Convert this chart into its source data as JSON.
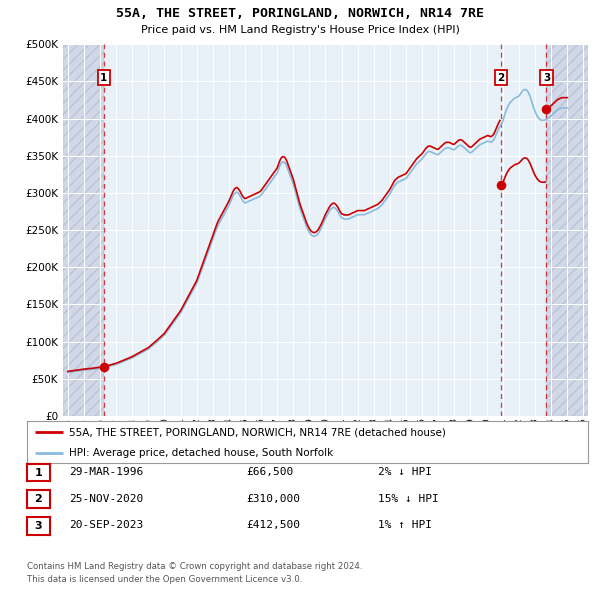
{
  "title": "55A, THE STREET, PORINGLAND, NORWICH, NR14 7RE",
  "subtitle": "Price paid vs. HM Land Registry's House Price Index (HPI)",
  "legend_line1": "55A, THE STREET, PORINGLAND, NORWICH, NR14 7RE (detached house)",
  "legend_line2": "HPI: Average price, detached house, South Norfolk",
  "table_rows": [
    {
      "num": "1",
      "date": "29-MAR-1996",
      "price": "£66,500",
      "pct": "2% ↓ HPI"
    },
    {
      "num": "2",
      "date": "25-NOV-2020",
      "price": "£310,000",
      "pct": "15% ↓ HPI"
    },
    {
      "num": "3",
      "date": "20-SEP-2023",
      "price": "£412,500",
      "pct": "1% ↑ HPI"
    }
  ],
  "footer1": "Contains HM Land Registry data © Crown copyright and database right 2024.",
  "footer2": "This data is licensed under the Open Government Licence v3.0.",
  "sale_color": "#cc0000",
  "hpi_color": "#88bbdd",
  "marker_color": "#cc0000",
  "dashed_color": "#cc0000",
  "background_plot": "#e8f0f8",
  "background_hatch": "#d0d8e8",
  "ylim": [
    0,
    500000
  ],
  "yticks": [
    0,
    50000,
    100000,
    150000,
    200000,
    250000,
    300000,
    350000,
    400000,
    450000,
    500000
  ],
  "xlim_start": 1993.7,
  "xlim_end": 2026.3,
  "xticks": [
    1994,
    1995,
    1996,
    1997,
    1998,
    1999,
    2000,
    2001,
    2002,
    2003,
    2004,
    2005,
    2006,
    2007,
    2008,
    2009,
    2010,
    2011,
    2012,
    2013,
    2014,
    2015,
    2016,
    2017,
    2018,
    2019,
    2020,
    2021,
    2022,
    2023,
    2024,
    2025,
    2026
  ],
  "sale_dates": [
    1996.24,
    2020.9,
    2023.72
  ],
  "sale_prices": [
    66500,
    310000,
    412500
  ],
  "hpi_index": [
    1994.0,
    71.2,
    1994.083,
    71.5,
    1994.167,
    71.8,
    1994.25,
    72.1,
    1994.333,
    72.4,
    1994.417,
    72.7,
    1994.5,
    73.0,
    1994.583,
    73.3,
    1994.667,
    73.6,
    1994.75,
    73.9,
    1994.833,
    74.2,
    1994.917,
    74.5,
    1995.0,
    74.8,
    1995.083,
    75.0,
    1995.167,
    75.2,
    1995.25,
    75.4,
    1995.333,
    75.6,
    1995.417,
    75.8,
    1995.5,
    76.0,
    1995.583,
    76.3,
    1995.667,
    76.6,
    1995.75,
    76.9,
    1995.833,
    77.2,
    1995.917,
    77.5,
    1996.0,
    77.8,
    1996.083,
    78.2,
    1996.167,
    78.6,
    1996.25,
    79.0,
    1996.333,
    79.5,
    1996.417,
    80.0,
    1996.5,
    80.5,
    1996.583,
    81.1,
    1996.667,
    81.7,
    1996.75,
    82.3,
    1996.833,
    82.9,
    1996.917,
    83.5,
    1997.0,
    84.2,
    1997.083,
    85.0,
    1997.167,
    85.8,
    1997.25,
    86.7,
    1997.333,
    87.6,
    1997.417,
    88.5,
    1997.5,
    89.4,
    1997.583,
    90.3,
    1997.667,
    91.2,
    1997.75,
    92.1,
    1997.833,
    93.0,
    1997.917,
    93.9,
    1998.0,
    94.8,
    1998.083,
    96.0,
    1998.167,
    97.2,
    1998.25,
    98.4,
    1998.333,
    99.6,
    1998.417,
    100.8,
    1998.5,
    102.0,
    1998.583,
    103.2,
    1998.667,
    104.4,
    1998.75,
    105.6,
    1998.833,
    106.8,
    1998.917,
    108.0,
    1999.0,
    109.2,
    1999.083,
    111.0,
    1999.167,
    112.8,
    1999.25,
    114.6,
    1999.333,
    116.4,
    1999.417,
    118.2,
    1999.5,
    120.0,
    1999.583,
    122.0,
    1999.667,
    124.0,
    1999.75,
    126.0,
    1999.833,
    128.0,
    1999.917,
    130.0,
    2000.0,
    132.0,
    2000.083,
    135.0,
    2000.167,
    138.0,
    2000.25,
    141.0,
    2000.333,
    144.0,
    2000.417,
    147.0,
    2000.5,
    150.0,
    2000.583,
    153.0,
    2000.667,
    156.0,
    2000.75,
    159.0,
    2000.833,
    162.0,
    2000.917,
    165.0,
    2001.0,
    168.0,
    2001.083,
    172.0,
    2001.167,
    176.0,
    2001.25,
    180.0,
    2001.333,
    184.0,
    2001.417,
    188.0,
    2001.5,
    192.0,
    2001.583,
    196.0,
    2001.667,
    200.0,
    2001.75,
    204.0,
    2001.833,
    208.0,
    2001.917,
    212.0,
    2002.0,
    216.0,
    2002.083,
    222.0,
    2002.167,
    228.0,
    2002.25,
    234.0,
    2002.333,
    240.0,
    2002.417,
    246.0,
    2002.5,
    252.0,
    2002.583,
    258.0,
    2002.667,
    264.0,
    2002.75,
    270.0,
    2002.833,
    276.0,
    2002.917,
    282.0,
    2003.0,
    288.0,
    2003.083,
    294.0,
    2003.167,
    300.0,
    2003.25,
    306.0,
    2003.333,
    311.0,
    2003.417,
    315.0,
    2003.5,
    319.0,
    2003.583,
    323.0,
    2003.667,
    327.0,
    2003.75,
    331.0,
    2003.833,
    335.0,
    2003.917,
    339.0,
    2004.0,
    343.0,
    2004.083,
    348.0,
    2004.167,
    353.0,
    2004.25,
    358.0,
    2004.333,
    362.0,
    2004.417,
    364.0,
    2004.5,
    365.0,
    2004.583,
    363.0,
    2004.667,
    360.0,
    2004.75,
    356.0,
    2004.833,
    352.0,
    2004.917,
    349.0,
    2005.0,
    347.0,
    2005.083,
    348.0,
    2005.167,
    349.0,
    2005.25,
    350.0,
    2005.333,
    351.0,
    2005.417,
    352.0,
    2005.5,
    353.0,
    2005.583,
    354.0,
    2005.667,
    355.0,
    2005.75,
    356.0,
    2005.833,
    357.0,
    2005.917,
    358.0,
    2006.0,
    360.0,
    2006.083,
    363.0,
    2006.167,
    366.0,
    2006.25,
    369.0,
    2006.333,
    372.0,
    2006.417,
    375.0,
    2006.5,
    378.0,
    2006.583,
    381.0,
    2006.667,
    384.0,
    2006.75,
    387.0,
    2006.833,
    390.0,
    2006.917,
    393.0,
    2007.0,
    396.0,
    2007.083,
    402.0,
    2007.167,
    408.0,
    2007.25,
    412.0,
    2007.333,
    414.0,
    2007.417,
    414.0,
    2007.5,
    412.0,
    2007.583,
    408.0,
    2007.667,
    402.0,
    2007.75,
    396.0,
    2007.833,
    390.0,
    2007.917,
    384.0,
    2008.0,
    378.0,
    2008.083,
    370.0,
    2008.167,
    362.0,
    2008.25,
    354.0,
    2008.333,
    346.0,
    2008.417,
    338.0,
    2008.5,
    332.0,
    2008.583,
    326.0,
    2008.667,
    320.0,
    2008.75,
    314.0,
    2008.833,
    308.0,
    2008.917,
    303.0,
    2009.0,
    299.0,
    2009.083,
    296.0,
    2009.167,
    294.0,
    2009.25,
    293.0,
    2009.333,
    293.0,
    2009.417,
    294.0,
    2009.5,
    296.0,
    2009.583,
    299.0,
    2009.667,
    303.0,
    2009.75,
    307.0,
    2009.833,
    312.0,
    2009.917,
    317.0,
    2010.0,
    322.0,
    2010.083,
    326.0,
    2010.167,
    330.0,
    2010.25,
    334.0,
    2010.333,
    337.0,
    2010.417,
    339.0,
    2010.5,
    340.0,
    2010.583,
    339.0,
    2010.667,
    337.0,
    2010.75,
    334.0,
    2010.833,
    330.0,
    2010.917,
    326.0,
    2011.0,
    323.0,
    2011.083,
    322.0,
    2011.167,
    321.0,
    2011.25,
    321.0,
    2011.333,
    321.0,
    2011.417,
    321.0,
    2011.5,
    322.0,
    2011.583,
    323.0,
    2011.667,
    324.0,
    2011.75,
    325.0,
    2011.833,
    326.0,
    2011.917,
    327.0,
    2012.0,
    328.0,
    2012.083,
    328.0,
    2012.167,
    328.0,
    2012.25,
    328.0,
    2012.333,
    328.0,
    2012.417,
    328.0,
    2012.5,
    329.0,
    2012.583,
    330.0,
    2012.667,
    331.0,
    2012.75,
    332.0,
    2012.833,
    333.0,
    2012.917,
    334.0,
    2013.0,
    335.0,
    2013.083,
    336.0,
    2013.167,
    337.0,
    2013.25,
    338.0,
    2013.333,
    340.0,
    2013.417,
    342.0,
    2013.5,
    344.0,
    2013.583,
    347.0,
    2013.667,
    350.0,
    2013.75,
    353.0,
    2013.833,
    356.0,
    2013.917,
    359.0,
    2014.0,
    362.0,
    2014.083,
    366.0,
    2014.167,
    370.0,
    2014.25,
    374.0,
    2014.333,
    377.0,
    2014.417,
    379.0,
    2014.5,
    381.0,
    2014.583,
    382.0,
    2014.667,
    383.0,
    2014.75,
    384.0,
    2014.833,
    385.0,
    2014.917,
    386.0,
    2015.0,
    387.0,
    2015.083,
    390.0,
    2015.167,
    393.0,
    2015.25,
    396.0,
    2015.333,
    399.0,
    2015.417,
    402.0,
    2015.5,
    405.0,
    2015.583,
    408.0,
    2015.667,
    411.0,
    2015.75,
    413.0,
    2015.833,
    415.0,
    2015.917,
    417.0,
    2016.0,
    419.0,
    2016.083,
    422.0,
    2016.167,
    425.0,
    2016.25,
    428.0,
    2016.333,
    430.0,
    2016.417,
    431.0,
    2016.5,
    431.0,
    2016.583,
    430.0,
    2016.667,
    429.0,
    2016.75,
    428.0,
    2016.833,
    427.0,
    2016.917,
    426.0,
    2017.0,
    426.0,
    2017.083,
    428.0,
    2017.167,
    430.0,
    2017.25,
    432.0,
    2017.333,
    434.0,
    2017.417,
    436.0,
    2017.5,
    437.0,
    2017.583,
    437.0,
    2017.667,
    437.0,
    2017.75,
    436.0,
    2017.833,
    435.0,
    2017.917,
    434.0,
    2018.0,
    434.0,
    2018.083,
    436.0,
    2018.167,
    438.0,
    2018.25,
    440.0,
    2018.333,
    441.0,
    2018.417,
    441.0,
    2018.5,
    440.0,
    2018.583,
    438.0,
    2018.667,
    436.0,
    2018.75,
    434.0,
    2018.833,
    432.0,
    2018.917,
    430.0,
    2019.0,
    429.0,
    2019.083,
    430.0,
    2019.167,
    432.0,
    2019.25,
    434.0,
    2019.333,
    436.0,
    2019.417,
    438.0,
    2019.5,
    440.0,
    2019.583,
    442.0,
    2019.667,
    443.0,
    2019.75,
    444.0,
    2019.833,
    445.0,
    2019.917,
    446.0,
    2020.0,
    447.0,
    2020.083,
    448.0,
    2020.167,
    447.0,
    2020.25,
    446.0,
    2020.333,
    447.0,
    2020.417,
    449.0,
    2020.5,
    453.0,
    2020.583,
    458.0,
    2020.667,
    463.0,
    2020.75,
    468.0,
    2020.833,
    472.0,
    2020.917,
    476.0,
    2021.0,
    480.0,
    2021.083,
    487.0,
    2021.167,
    494.0,
    2021.25,
    500.0,
    2021.333,
    505.0,
    2021.417,
    509.0,
    2021.5,
    512.0,
    2021.583,
    514.0,
    2021.667,
    516.0,
    2021.75,
    518.0,
    2021.833,
    519.0,
    2021.917,
    520.0,
    2022.0,
    521.0,
    2022.083,
    524.0,
    2022.167,
    527.0,
    2022.25,
    530.0,
    2022.333,
    532.0,
    2022.417,
    532.0,
    2022.5,
    531.0,
    2022.583,
    528.0,
    2022.667,
    523.0,
    2022.75,
    517.0,
    2022.833,
    510.0,
    2022.917,
    503.0,
    2023.0,
    497.0,
    2023.083,
    492.0,
    2023.167,
    488.0,
    2023.25,
    485.0,
    2023.333,
    483.0,
    2023.417,
    482.0,
    2023.5,
    482.0,
    2023.583,
    482.0,
    2023.667,
    483.0,
    2023.75,
    484.0,
    2023.833,
    485.0,
    2023.917,
    487.0,
    2024.0,
    489.0,
    2024.083,
    491.0,
    2024.167,
    493.0,
    2024.25,
    495.0,
    2024.333,
    497.0,
    2024.417,
    499.0,
    2024.5,
    500.0,
    2024.583,
    501.0,
    2024.667,
    502.0,
    2024.75,
    502.0,
    2024.833,
    502.0,
    2024.917,
    502.0,
    2025.0,
    502.0
  ],
  "label_nums": [
    "1",
    "2",
    "3"
  ]
}
